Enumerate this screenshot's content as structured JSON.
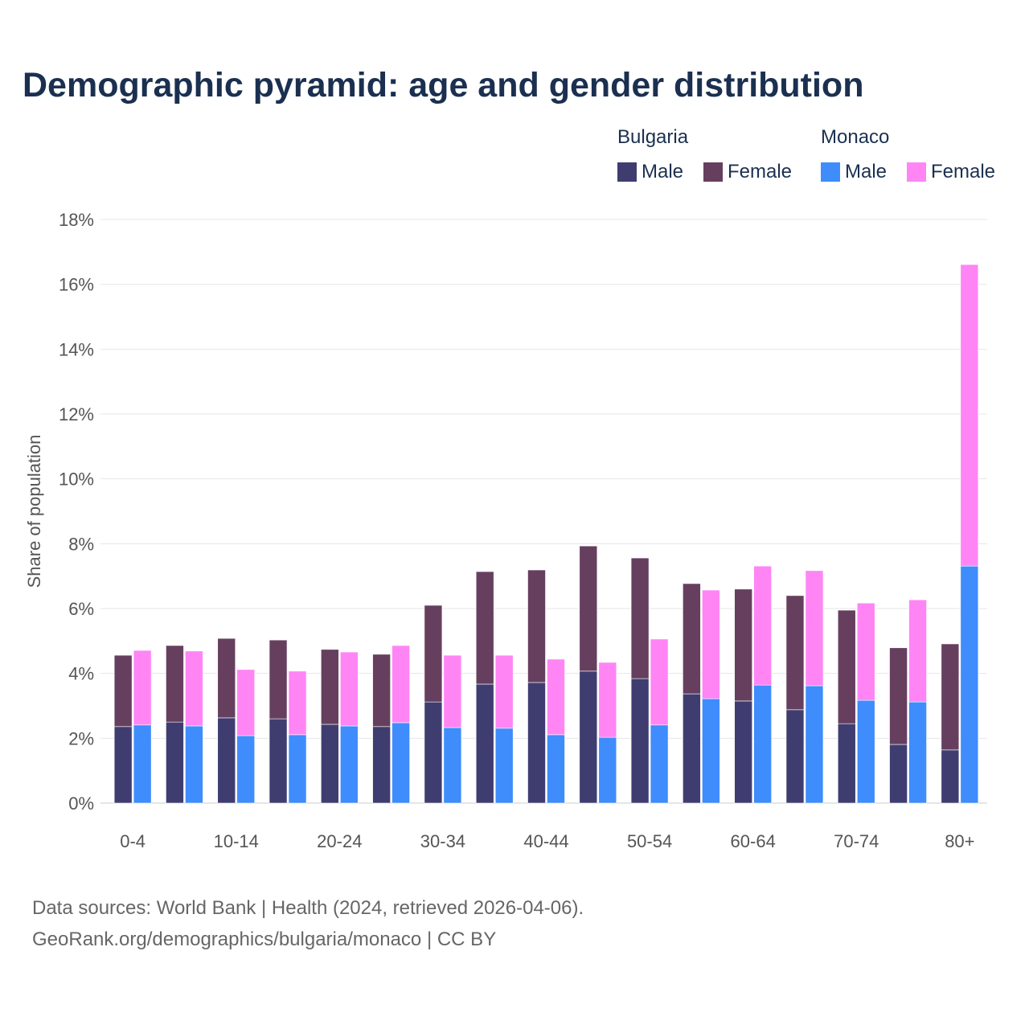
{
  "chart_data": {
    "type": "bar",
    "title": "Demographic pyramid: age and gender distribution",
    "ylabel": "Share of population",
    "xlabel": "",
    "ylim": [
      0,
      18
    ],
    "yticks": [
      "0%",
      "2%",
      "4%",
      "6%",
      "8%",
      "10%",
      "12%",
      "14%",
      "16%",
      "18%"
    ],
    "tick_labels": [
      {
        "index": 0,
        "label": "0-4"
      },
      {
        "index": 2,
        "label": "10-14"
      },
      {
        "index": 4,
        "label": "20-24"
      },
      {
        "index": 6,
        "label": "30-34"
      },
      {
        "index": 8,
        "label": "40-44"
      },
      {
        "index": 10,
        "label": "50-54"
      },
      {
        "index": 12,
        "label": "60-64"
      },
      {
        "index": 14,
        "label": "70-74"
      },
      {
        "index": 16,
        "label": "80+"
      }
    ],
    "grid": true,
    "legend_position": "top-right",
    "countries": [
      {
        "name": "Bulgaria",
        "male": {
          "label": "Male",
          "color": "#3f3d70",
          "values": [
            2.36,
            2.5,
            2.63,
            2.6,
            2.43,
            2.36,
            3.12,
            3.67,
            3.72,
            4.07,
            3.84,
            3.37,
            3.15,
            2.88,
            2.45,
            1.81,
            1.64
          ]
        },
        "female": {
          "label": "Female",
          "color": "#663f5f",
          "values": [
            2.2,
            2.36,
            2.45,
            2.43,
            2.31,
            2.23,
            2.98,
            3.47,
            3.47,
            3.86,
            3.72,
            3.4,
            3.45,
            3.52,
            3.5,
            2.98,
            3.27
          ]
        }
      },
      {
        "name": "Monaco",
        "male": {
          "label": "Male",
          "color": "#3f8cfc",
          "values": [
            2.41,
            2.38,
            2.08,
            2.11,
            2.38,
            2.48,
            2.33,
            2.31,
            2.11,
            2.03,
            2.41,
            3.22,
            3.64,
            3.62,
            3.17,
            3.12,
            7.31
          ]
        },
        "female": {
          "label": "Female",
          "color": "#ff85f5",
          "values": [
            2.3,
            2.31,
            2.04,
            1.96,
            2.28,
            2.38,
            2.23,
            2.25,
            2.33,
            2.31,
            2.65,
            3.35,
            3.67,
            3.55,
            3.0,
            3.15,
            9.3
          ]
        }
      }
    ]
  },
  "footer": {
    "line1": "Data sources: World Bank | Health (2024, retrieved 2026-04-06).",
    "line2": "GeoRank.org/demographics/bulgaria/monaco | CC BY"
  }
}
